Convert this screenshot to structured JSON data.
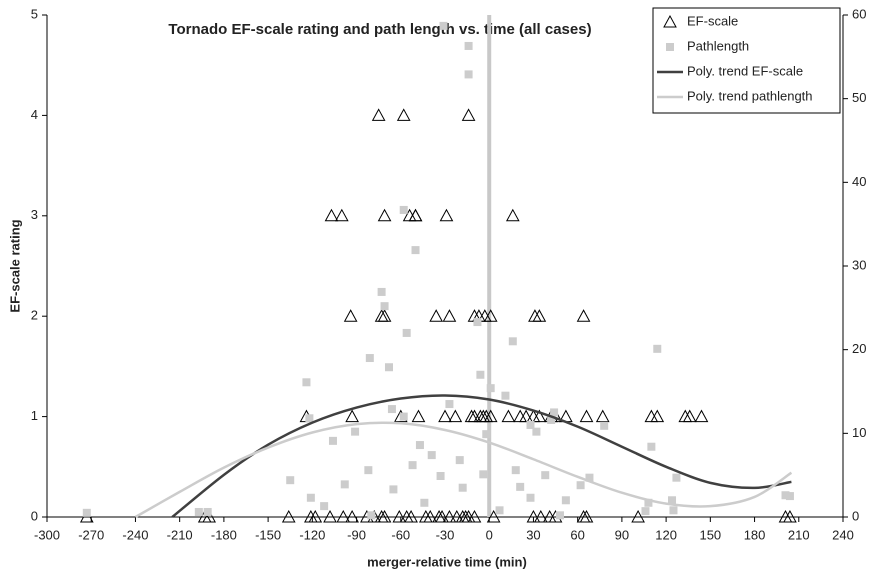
{
  "chart_data": {
    "type": "scatter",
    "title": "Tornado EF-scale rating and path length vs. time (all cases)",
    "x_label": "merger-relative time (min)",
    "y_label": "EF-scale rating",
    "xlim": [
      -300,
      240
    ],
    "xticks": [
      -300,
      -270,
      -240,
      -210,
      -180,
      -150,
      -120,
      -90,
      -60,
      -30,
      0,
      30,
      60,
      90,
      120,
      150,
      180,
      210,
      240
    ],
    "ylim": [
      0,
      5
    ],
    "yticks": [
      0,
      1,
      2,
      3,
      4,
      5
    ],
    "y2lim": [
      0,
      60
    ],
    "y2ticks": [
      0,
      10,
      20,
      30,
      40,
      50,
      60
    ],
    "vline": 0,
    "vline_color": "#c8c8c8",
    "legend": "top-right",
    "series": [
      {
        "name": "EF-scale",
        "type": "scatter",
        "marker": "triangle",
        "color": "#000000",
        "x": [
          -75,
          -58,
          -14,
          -107,
          -100,
          -71,
          -54,
          -50,
          -50,
          -29,
          16,
          -94,
          -73,
          -71,
          -36,
          -27,
          -10,
          -7,
          -3,
          1,
          31,
          34,
          64,
          -124,
          -93,
          -60,
          -48,
          -30,
          -23,
          -12,
          -10,
          -6,
          -4,
          -2,
          1,
          13,
          21,
          25,
          30,
          34,
          42,
          45,
          52,
          66,
          77,
          110,
          114,
          133,
          136,
          144,
          -273,
          -193,
          -190,
          -136,
          -121,
          -118,
          -108,
          -99,
          -93,
          -83,
          -78,
          -73,
          -71,
          -61,
          -56,
          -53,
          -43,
          -40,
          -34,
          -32,
          -27,
          -22,
          -18,
          -16,
          -14,
          -10,
          3,
          30,
          35,
          41,
          45,
          64,
          66,
          101,
          201,
          204
        ],
        "values": [
          4,
          4,
          4,
          3,
          3,
          3,
          3,
          3,
          3,
          3,
          3,
          2,
          2,
          2,
          2,
          2,
          2,
          2,
          2,
          2,
          2,
          2,
          2,
          1,
          1,
          1,
          1,
          1,
          1,
          1,
          1,
          1,
          1,
          1,
          1,
          1,
          1,
          1,
          1,
          1,
          1,
          1,
          1,
          1,
          1,
          1,
          1,
          1,
          1,
          1,
          0,
          0,
          0,
          0,
          0,
          0,
          0,
          0,
          0,
          0,
          0,
          0,
          0,
          0,
          0,
          0,
          0,
          0,
          0,
          0,
          0,
          0,
          0,
          0,
          0,
          0,
          0,
          0,
          0,
          0,
          0,
          0,
          0,
          0,
          0,
          0
        ]
      },
      {
        "name": "Pathlength",
        "type": "scatter",
        "marker": "square",
        "color": "#cccccc",
        "axis": "y2",
        "x": [
          -273,
          -191,
          -124,
          -122,
          -73,
          -71,
          -68,
          -81,
          -58,
          -56,
          -50,
          -31,
          -14,
          -14,
          16,
          114,
          11,
          -6,
          -8,
          -27,
          -66,
          -106,
          -91,
          -52,
          -47,
          -33,
          1,
          -2,
          28,
          44,
          108,
          110,
          124,
          125,
          127,
          106,
          52,
          42,
          32,
          38,
          62,
          68,
          78,
          28,
          48,
          -82,
          -98,
          -112,
          -121,
          -135,
          -80,
          -65,
          -44,
          -18,
          -4,
          7,
          18,
          21,
          201,
          204,
          -197,
          -58,
          -20,
          -39
        ],
        "values": [
          0.5,
          0.6,
          16.1,
          11.8,
          26.9,
          25.2,
          17.9,
          19,
          36.7,
          22,
          31.9,
          58.7,
          52.9,
          56.3,
          21,
          20.1,
          14.5,
          17,
          23.3,
          13.5,
          12.9,
          9.1,
          10.2,
          6.2,
          8.6,
          4.9,
          15.4,
          9.9,
          11,
          12.5,
          1.7,
          8.4,
          2,
          0.8,
          4.7,
          0.7,
          2,
          11.6,
          10.2,
          5,
          3.8,
          4.7,
          10.9,
          2.3,
          0.2,
          5.6,
          3.9,
          1.3,
          2.3,
          4.4,
          0.2,
          3.3,
          1.7,
          3.5,
          5.1,
          0.8,
          5.6,
          3.6,
          2.6,
          2.5,
          0.6,
          12,
          6.8,
          7.4
        ]
      },
      {
        "name": "Poly. trend EF-scale",
        "type": "line",
        "color": "#404040",
        "x": [
          -215,
          -180,
          -150,
          -120,
          -90,
          -60,
          -30,
          0,
          30,
          60,
          90,
          120,
          150,
          180,
          205
        ],
        "values": [
          0,
          0.42,
          0.72,
          0.94,
          1.09,
          1.18,
          1.21,
          1.17,
          1.06,
          0.9,
          0.7,
          0.5,
          0.34,
          0.29,
          0.35
        ]
      },
      {
        "name": "Poly. trend pathlength",
        "type": "line",
        "color": "#cccccc",
        "axis": "y2",
        "x": [
          -240,
          -210,
          -180,
          -150,
          -120,
          -90,
          -60,
          -30,
          0,
          30,
          60,
          90,
          120,
          150,
          180,
          205
        ],
        "values": [
          0,
          3,
          5.9,
          8.3,
          10.1,
          11.1,
          11.2,
          10.4,
          8.9,
          6.9,
          4.8,
          2.9,
          1.6,
          1.3,
          2.4,
          5.3
        ]
      }
    ]
  }
}
